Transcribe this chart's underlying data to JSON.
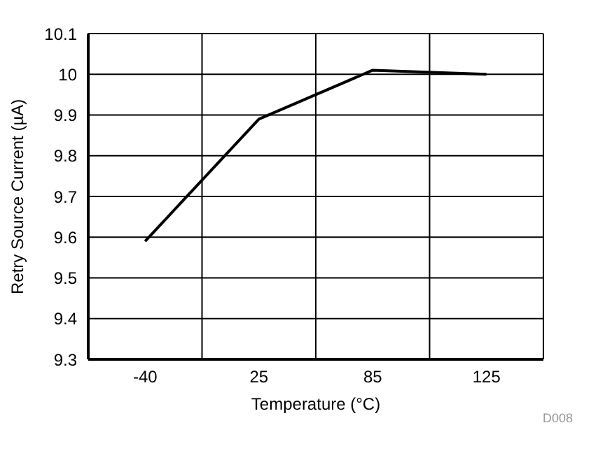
{
  "chart_data": {
    "type": "line",
    "xlabel": "Temperature (°C)",
    "ylabel": "Retry Source Current (µA)",
    "categories": [
      "-40",
      "25",
      "85",
      "125"
    ],
    "series": [
      {
        "color": "#000000",
        "values": [
          9.59,
          9.89,
          10.01,
          10.0
        ]
      }
    ],
    "ylim": [
      9.3,
      10.1
    ],
    "yticks": [
      9.3,
      9.4,
      9.5,
      9.6,
      9.7,
      9.8,
      9.9,
      10,
      10.1
    ],
    "grid": true,
    "marker": "none",
    "line_style": "solid",
    "annotations": [
      "D008"
    ]
  }
}
